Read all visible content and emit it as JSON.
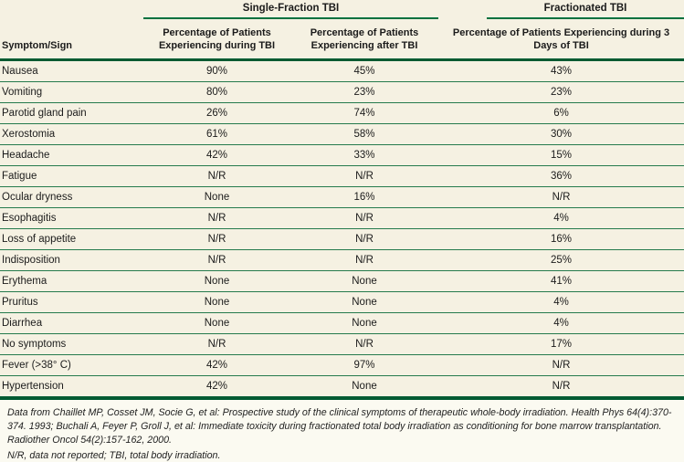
{
  "table": {
    "spanner_single_fraction": "Single-Fraction TBI",
    "spanner_fractionated": "Fractionated TBI",
    "columns": {
      "symptom": "Symptom/Sign",
      "during": "Percentage of Patients Experiencing during TBI",
      "after": "Percentage of Patients Experiencing after TBI",
      "fractionated": "Percentage of Patients Experiencing during 3 Days of TBI"
    },
    "rows": [
      {
        "symptom": "Nausea",
        "during": "90%",
        "after": "45%",
        "fractionated": "43%"
      },
      {
        "symptom": "Vomiting",
        "during": "80%",
        "after": "23%",
        "fractionated": "23%"
      },
      {
        "symptom": "Parotid gland pain",
        "during": "26%",
        "after": "74%",
        "fractionated": "6%"
      },
      {
        "symptom": "Xerostomia",
        "during": "61%",
        "after": "58%",
        "fractionated": "30%"
      },
      {
        "symptom": "Headache",
        "during": "42%",
        "after": "33%",
        "fractionated": "15%"
      },
      {
        "symptom": "Fatigue",
        "during": "N/R",
        "after": "N/R",
        "fractionated": "36%"
      },
      {
        "symptom": "Ocular dryness",
        "during": "None",
        "after": "16%",
        "fractionated": "N/R"
      },
      {
        "symptom": "Esophagitis",
        "during": "N/R",
        "after": "N/R",
        "fractionated": "4%"
      },
      {
        "symptom": "Loss of appetite",
        "during": "N/R",
        "after": "N/R",
        "fractionated": "16%"
      },
      {
        "symptom": "Indisposition",
        "during": "N/R",
        "after": "N/R",
        "fractionated": "25%"
      },
      {
        "symptom": "Erythema",
        "during": "None",
        "after": "None",
        "fractionated": "41%"
      },
      {
        "symptom": "Pruritus",
        "during": "None",
        "after": "None",
        "fractionated": "4%"
      },
      {
        "symptom": "Diarrhea",
        "during": "None",
        "after": "None",
        "fractionated": "4%"
      },
      {
        "symptom": "No symptoms",
        "during": "N/R",
        "after": "N/R",
        "fractionated": "17%"
      },
      {
        "symptom": "Fever (>38° C)",
        "during": "42%",
        "after": "97%",
        "fractionated": "N/R"
      },
      {
        "symptom": "Hypertension",
        "during": "42%",
        "after": "None",
        "fractionated": "N/R"
      }
    ]
  },
  "footnotes": {
    "source": "Data from Chaillet MP, Cosset JM, Socie G, et al: Prospective study of the clinical symptoms of therapeutic whole-body irradiation. Health Phys 64(4):370-374. 1993; Buchali A, Feyer P, Groll J, et al: Immediate toxicity during fractionated total body irradiation as conditioning for bone marrow transplantation. Radiother Oncol 54(2):157-162, 2000.",
    "abbreviations": "N/R, data not reported; TBI, total body irradiation."
  },
  "colors": {
    "accent_green": "#00713f",
    "rule_green_dark": "#005a31",
    "rule_green_thin": "#257b4d",
    "table_background": "#f5f1e2",
    "page_background": "#fbfaf1"
  }
}
